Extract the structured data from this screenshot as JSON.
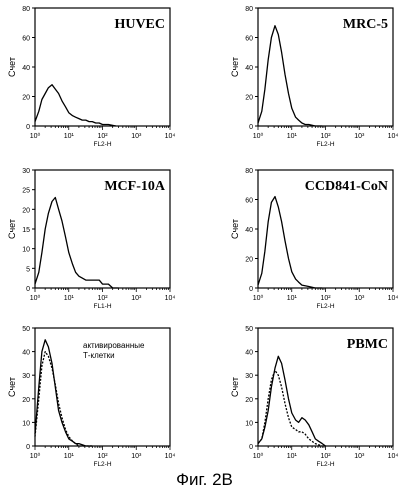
{
  "caption": "Фиг. 2В",
  "chart_data": [
    {
      "type": "line",
      "title": "HUVEC",
      "ylabel": "Счет",
      "xlabel": "FL2-H",
      "x_scale": "log",
      "xlim": [
        1,
        10000
      ],
      "ylim": [
        0,
        80
      ],
      "y_ticks": [
        0,
        20,
        40,
        60,
        80
      ],
      "x_tick_labels": [
        "10⁰",
        "10¹",
        "10²",
        "10³",
        "10⁴"
      ],
      "series": [
        {
          "x": [
            1.0,
            1.3,
            1.6,
            2.0,
            2.5,
            3.2,
            4.0,
            5.0,
            6.3,
            8.0,
            10,
            13,
            16,
            20,
            25,
            32,
            40,
            50,
            63,
            80,
            100,
            150,
            250
          ],
          "values": [
            3,
            10,
            18,
            22,
            26,
            28,
            25,
            22,
            17,
            13,
            9,
            7,
            6,
            5,
            4,
            4,
            3,
            3,
            2,
            2,
            1,
            1,
            0
          ]
        }
      ]
    },
    {
      "type": "line",
      "title": "MRC-5",
      "ylabel": "Счет",
      "xlabel": "FL2-H",
      "x_scale": "log",
      "xlim": [
        1,
        10000
      ],
      "ylim": [
        0,
        80
      ],
      "y_ticks": [
        0,
        20,
        40,
        60,
        80
      ],
      "x_tick_labels": [
        "10⁰",
        "10¹",
        "10²",
        "10³",
        "10⁴"
      ],
      "series": [
        {
          "x": [
            1.0,
            1.3,
            1.6,
            2.0,
            2.5,
            3.2,
            4.0,
            5.0,
            6.3,
            8.0,
            10,
            13,
            16,
            20,
            25,
            32,
            50,
            80
          ],
          "values": [
            2,
            10,
            25,
            45,
            60,
            68,
            62,
            50,
            35,
            22,
            12,
            6,
            4,
            2,
            1,
            1,
            0,
            0
          ]
        }
      ]
    },
    {
      "type": "line",
      "title": "MCF-10A",
      "ylabel": "Счет",
      "xlabel": "FL1-H",
      "x_scale": "log",
      "xlim": [
        1,
        10000
      ],
      "ylim": [
        0,
        30
      ],
      "y_ticks": [
        0,
        5,
        10,
        15,
        20,
        25,
        30
      ],
      "x_tick_labels": [
        "10⁰",
        "10¹",
        "10²",
        "10³",
        "10⁴"
      ],
      "series": [
        {
          "x": [
            1.0,
            1.3,
            1.6,
            2.0,
            2.5,
            3.2,
            4.0,
            5.0,
            6.3,
            8.0,
            10,
            13,
            16,
            20,
            32,
            50,
            80,
            100,
            150,
            200,
            300
          ],
          "values": [
            1,
            4,
            9,
            15,
            19,
            22,
            23,
            20,
            17,
            13,
            9,
            6,
            4,
            3,
            2,
            2,
            2,
            1,
            1,
            0,
            0
          ]
        }
      ]
    },
    {
      "type": "line",
      "title": "CCD841-CoN",
      "ylabel": "Счет",
      "xlabel": "FL2-H",
      "x_scale": "log",
      "xlim": [
        1,
        10000
      ],
      "ylim": [
        0,
        80
      ],
      "y_ticks": [
        0,
        20,
        40,
        60,
        80
      ],
      "x_tick_labels": [
        "10⁰",
        "10¹",
        "10²",
        "10³",
        "10⁴"
      ],
      "series": [
        {
          "x": [
            1.0,
            1.3,
            1.6,
            2.0,
            2.5,
            3.2,
            4.0,
            5.0,
            6.3,
            8.0,
            10,
            13,
            16,
            20,
            32,
            50,
            80
          ],
          "values": [
            2,
            10,
            25,
            45,
            58,
            62,
            55,
            45,
            32,
            20,
            11,
            6,
            4,
            2,
            1,
            0,
            0
          ]
        }
      ]
    },
    {
      "type": "line",
      "annotation": "активированные Т-клетки",
      "ylabel": "Счет",
      "xlabel": "FL2-H",
      "x_scale": "log",
      "xlim": [
        1,
        10000
      ],
      "ylim": [
        0,
        50
      ],
      "y_ticks": [
        0,
        10,
        20,
        30,
        40,
        50
      ],
      "x_tick_labels": [
        "10⁰",
        "10¹",
        "10²",
        "10³",
        "10⁴"
      ],
      "series": [
        {
          "style": "solid",
          "x": [
            1.0,
            1.3,
            1.6,
            2.0,
            2.5,
            3.2,
            4.0,
            5.0,
            6.3,
            8.0,
            10,
            13,
            16,
            20,
            32,
            50
          ],
          "values": [
            5,
            25,
            40,
            45,
            42,
            35,
            25,
            15,
            10,
            6,
            3,
            2,
            1,
            1,
            0,
            0
          ]
        },
        {
          "style": "dashed",
          "x": [
            1.0,
            1.3,
            1.6,
            2.0,
            2.5,
            3.2,
            4.0,
            5.0,
            6.3,
            8.0,
            10,
            13,
            16,
            20,
            32,
            50
          ],
          "values": [
            4,
            20,
            34,
            40,
            38,
            33,
            26,
            18,
            12,
            7,
            4,
            2,
            1,
            0,
            0,
            0
          ]
        }
      ]
    },
    {
      "type": "line",
      "title": "PBMC",
      "ylabel": "Счет",
      "xlabel": "FL2-H",
      "x_scale": "log",
      "xlim": [
        1,
        10000
      ],
      "ylim": [
        0,
        50
      ],
      "y_ticks": [
        0,
        10,
        20,
        30,
        40,
        50
      ],
      "x_tick_labels": [
        "10⁰",
        "10¹",
        "10²",
        "10³",
        "10⁴"
      ],
      "series": [
        {
          "style": "solid",
          "x": [
            1.0,
            1.3,
            1.6,
            2.0,
            2.5,
            3.2,
            4.0,
            5.0,
            6.3,
            8.0,
            10,
            13,
            16,
            20,
            25,
            32,
            40,
            50,
            63,
            80,
            100
          ],
          "values": [
            1,
            3,
            8,
            15,
            25,
            33,
            38,
            35,
            28,
            20,
            14,
            11,
            10,
            12,
            11,
            9,
            6,
            3,
            2,
            1,
            0
          ]
        },
        {
          "style": "dashed",
          "x": [
            1.0,
            1.3,
            1.6,
            2.0,
            2.5,
            3.2,
            4.0,
            5.0,
            6.3,
            8.0,
            10,
            13,
            16,
            20,
            25,
            32,
            50,
            80
          ],
          "values": [
            1,
            3,
            10,
            20,
            28,
            32,
            30,
            25,
            18,
            12,
            8,
            7,
            6,
            6,
            5,
            3,
            1,
            0
          ]
        }
      ]
    }
  ]
}
